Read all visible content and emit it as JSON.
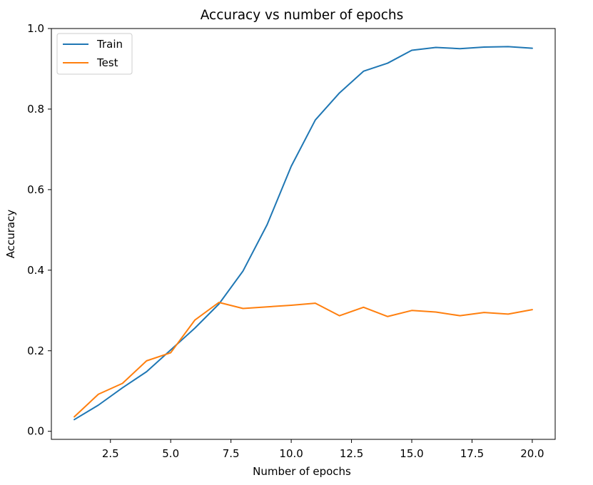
{
  "chart_data": {
    "type": "line",
    "title": "Accuracy vs number of epochs",
    "xlabel": "Number of epochs",
    "ylabel": "Accuracy",
    "xlim": [
      0.05,
      20.95
    ],
    "ylim": [
      -0.02,
      1.0
    ],
    "xticks": [
      2.5,
      5.0,
      7.5,
      10.0,
      12.5,
      15.0,
      17.5,
      20.0
    ],
    "xtick_labels": [
      "2.5",
      "5.0",
      "7.5",
      "10.0",
      "12.5",
      "15.0",
      "17.5",
      "20.0"
    ],
    "yticks": [
      0.0,
      0.2,
      0.4,
      0.6,
      0.8,
      1.0
    ],
    "ytick_labels": [
      "0.0",
      "0.2",
      "0.4",
      "0.6",
      "0.8",
      "1.0"
    ],
    "grid": false,
    "legend": "upper-left",
    "x": [
      1,
      2,
      3,
      4,
      5,
      6,
      7,
      8,
      9,
      10,
      11,
      12,
      13,
      14,
      15,
      16,
      17,
      18,
      19,
      20
    ],
    "series": [
      {
        "name": "Train",
        "color": "#1f77b4",
        "values": [
          0.029,
          0.065,
          0.108,
          0.148,
          0.202,
          0.256,
          0.316,
          0.398,
          0.513,
          0.658,
          0.773,
          0.84,
          0.894,
          0.914,
          0.946,
          0.953,
          0.95,
          0.954,
          0.955,
          0.951
        ]
      },
      {
        "name": "Test",
        "color": "#ff7f0e",
        "values": [
          0.036,
          0.092,
          0.119,
          0.175,
          0.195,
          0.276,
          0.32,
          0.305,
          0.309,
          0.313,
          0.318,
          0.287,
          0.308,
          0.285,
          0.3,
          0.296,
          0.287,
          0.295,
          0.291,
          0.302
        ]
      }
    ]
  }
}
